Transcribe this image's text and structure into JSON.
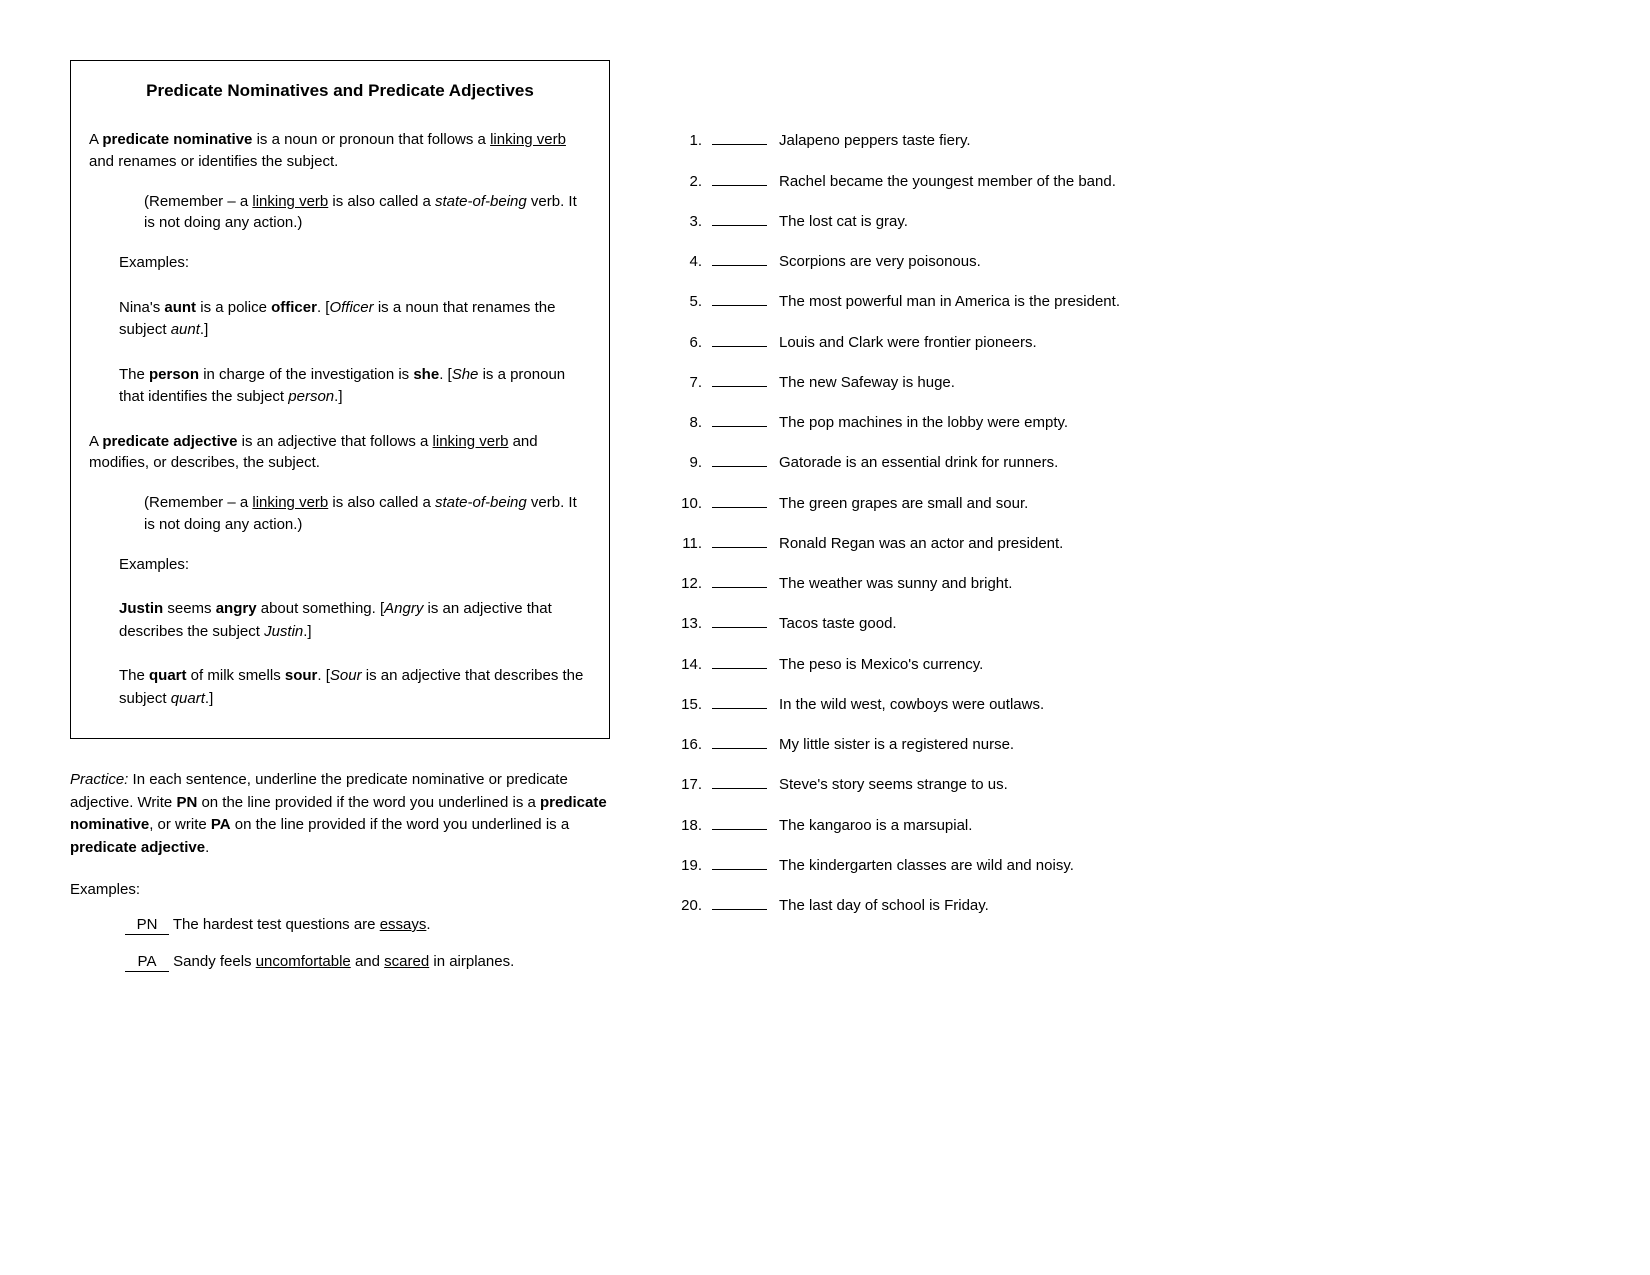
{
  "title": "Predicate Nominatives and Predicate Adjectives",
  "pn_def_pre": "A ",
  "pn_term": "predicate nominative",
  "pn_def_post": " is a noun or pronoun that follows a ",
  "linking_verb": "linking verb",
  "pn_def_tail": " and renames or identifies the subject.",
  "remember_pre": "(Remember – a ",
  "remember_mid": " is also called a ",
  "state_of_being": "state-of-being",
  "remember_tail": " verb.  It is not doing any action.)",
  "examples_label": "Examples:",
  "ex1_pre": "Nina's ",
  "ex1_aunt": "aunt",
  "ex1_mid": " is a police ",
  "ex1_officer": "officer",
  "ex1_post": ". [",
  "ex1_officer_i": "Officer",
  "ex1_expl": " is a noun that renames the subject ",
  "ex1_aunt_i": "aunt",
  "ex1_close": ".]",
  "ex2_pre": "The ",
  "ex2_person": "person",
  "ex2_mid": " in charge of the investigation is ",
  "ex2_she": "she",
  "ex2_post": ". [",
  "ex2_she_i": "She",
  "ex2_expl": " is a pronoun that identifies the subject ",
  "ex2_person_i": "person",
  "ex2_close": ".]",
  "pa_def_pre": "A ",
  "pa_term": "predicate adjective",
  "pa_def_post": " is an adjective that follows a ",
  "pa_def_tail": " and modifies, or describes, the subject.",
  "ex3_justin": "Justin",
  "ex3_mid": " seems ",
  "ex3_angry": "angry",
  "ex3_post": " about something. [",
  "ex3_angry_i": "Angry",
  "ex3_expl": " is an adjective that describes the subject ",
  "ex3_justin_i": "Justin",
  "ex3_close": ".]",
  "ex4_pre": "The ",
  "ex4_quart": "quart",
  "ex4_mid": " of milk smells ",
  "ex4_sour": "sour",
  "ex4_post": ". [",
  "ex4_sour_i": "Sour",
  "ex4_expl": " is an adjective that describes the subject ",
  "ex4_quart_i": "quart",
  "ex4_close": ".]",
  "practice_label": "Practice:",
  "practice_a": " In each sentence, underline the predicate nominative or predicate adjective.  Write ",
  "pn_abbr": "PN",
  "practice_b": " on the line provided if the word you underlined is a ",
  "pn_full": "predicate nominative",
  "practice_c": ", or write ",
  "pa_abbr": "PA",
  "practice_d": " on the line provided if the word you underlined is a ",
  "pa_full": "predicate adjective",
  "practice_e": ".",
  "ex_ans1": "PN",
  "ex_line1_a": "  The hardest test questions are ",
  "ex_line1_u": "essays",
  "ex_line1_b": ".",
  "ex_ans2": "PA",
  "ex_line2_a": "  Sandy feels ",
  "ex_line2_u1": "uncomfortable",
  "ex_line2_mid": " and ",
  "ex_line2_u2": "scared",
  "ex_line2_b": " in airplanes.",
  "questions": [
    "Jalapeno peppers taste fiery.",
    "Rachel became the youngest member of the band.",
    "The lost cat is gray.",
    "Scorpions are very poisonous.",
    "The most powerful man in America is the president.",
    "Louis and Clark were frontier pioneers.",
    "The new Safeway is huge.",
    "The pop machines in the lobby were empty.",
    "Gatorade is an essential drink for runners.",
    "The green grapes are small and sour.",
    "Ronald Regan was an actor and president.",
    "The weather was sunny and bright.",
    "Tacos taste good.",
    "The peso is Mexico's currency.",
    "In the wild west, cowboys were outlaws.",
    "My little sister is a registered nurse.",
    "Steve's story seems strange to us.",
    "The kangaroo is a marsupial.",
    "The kindergarten classes are wild and noisy.",
    "The last day of school is Friday."
  ]
}
